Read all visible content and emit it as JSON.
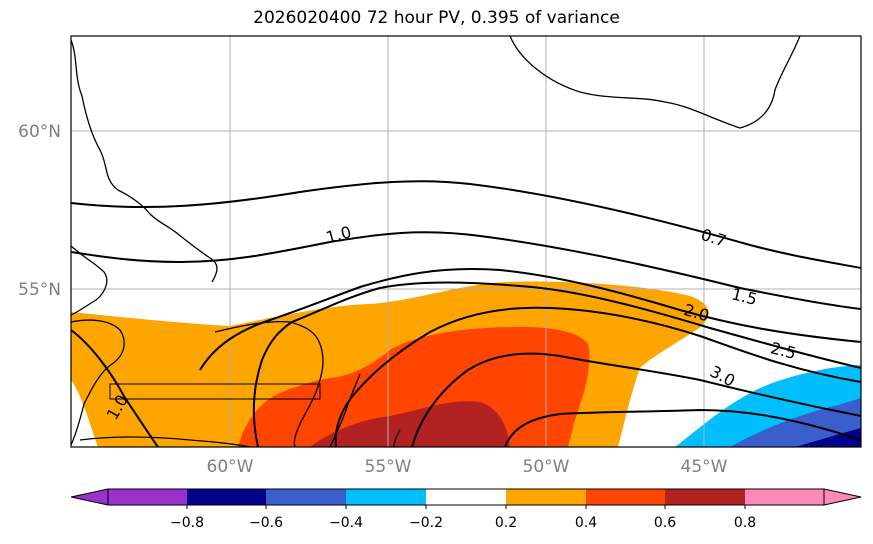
{
  "title": "2026020400 72 hour PV, 0.395 of variance",
  "map": {
    "lon_labels": [
      "60°W",
      "55°W",
      "50°W",
      "45°W"
    ],
    "lat_labels": [
      "60°N",
      "55°N"
    ],
    "contour_labels": [
      "1.0",
      "0.7",
      "1.5",
      "2.0",
      "2.5",
      "3.0",
      "1.0"
    ]
  },
  "colorbar": {
    "ticks": [
      "−0.8",
      "−0.6",
      "−0.4",
      "−0.2",
      "0.2",
      "0.4",
      "0.6",
      "0.8"
    ],
    "colors": [
      "#9932cc",
      "#00008b",
      "#3a5fcd",
      "#00bfff",
      "#ffffff",
      "#ffa500",
      "#ff4500",
      "#b22222",
      "#ff88bb"
    ]
  },
  "colors": {
    "orange": "#ffa500",
    "orangered": "#ff4500",
    "firebrick": "#b22222",
    "deepskyblue": "#00bfff",
    "royalblue": "#3a5fcd",
    "navy": "#00008b",
    "grid": "#b0b0b0"
  }
}
